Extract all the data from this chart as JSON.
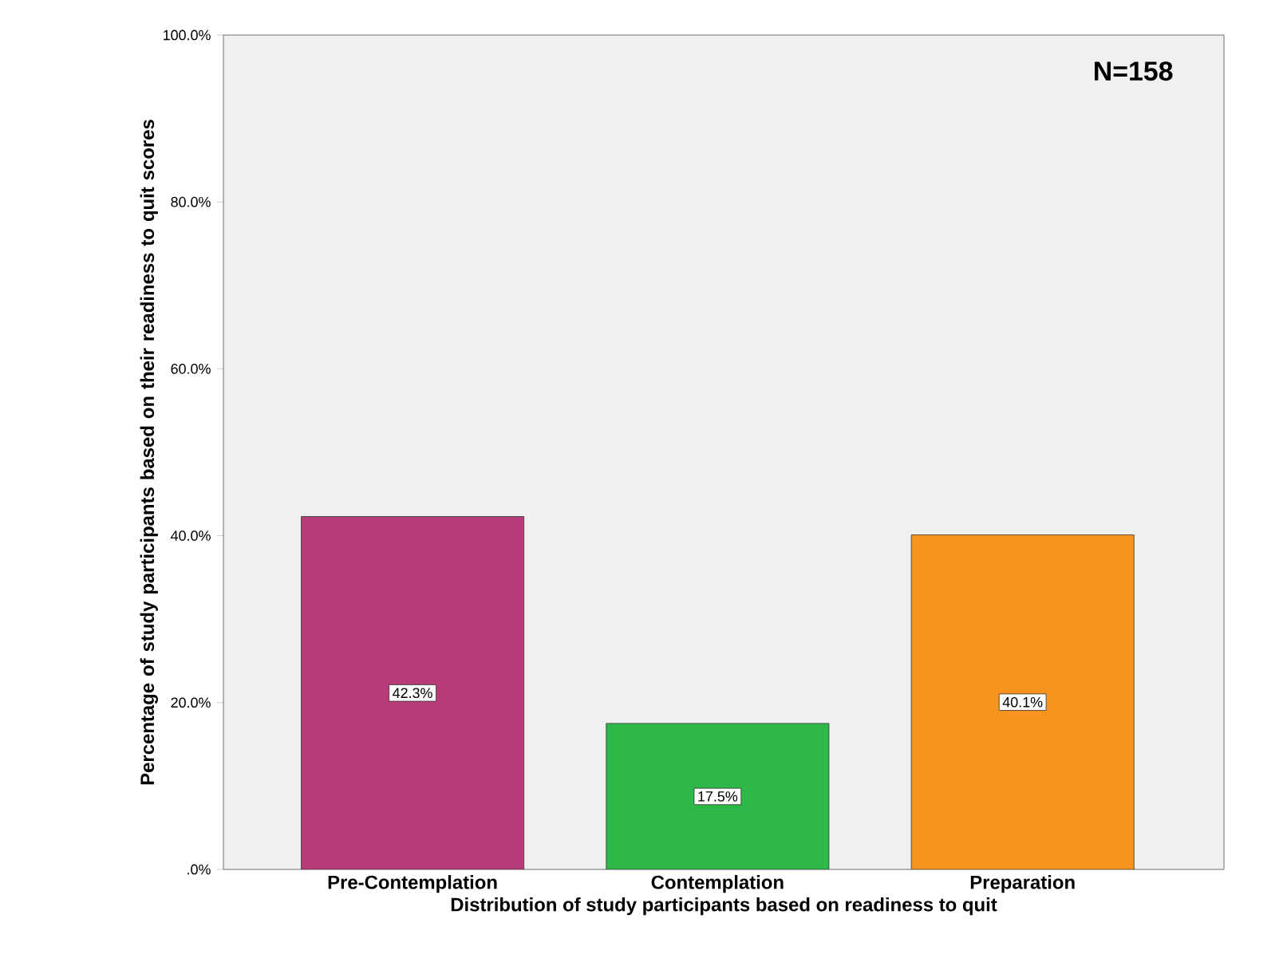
{
  "chart_data": {
    "type": "bar",
    "categories": [
      "Pre-Contemplation",
      "Contemplation",
      "Preparation"
    ],
    "values": [
      42.3,
      17.5,
      40.1
    ],
    "colors": [
      "#b83c78",
      "#2eb84a",
      "#f7941e"
    ],
    "value_labels": [
      "42.3%",
      "17.5%",
      "40.1%"
    ],
    "xlabel": "Distribution of study participants based on readiness to quit",
    "ylabel": "Percentage of study participants based on their readiness to quit scores",
    "ylim": [
      0,
      100
    ],
    "yticks": [
      {
        "value": 0,
        "label": ".0%"
      },
      {
        "value": 20,
        "label": "20.0%"
      },
      {
        "value": 40,
        "label": "40.0%"
      },
      {
        "value": 60,
        "label": "60.0%"
      },
      {
        "value": 80,
        "label": "80.0%"
      },
      {
        "value": 100,
        "label": "100.0%"
      }
    ],
    "annotations": [
      "N=158"
    ]
  }
}
